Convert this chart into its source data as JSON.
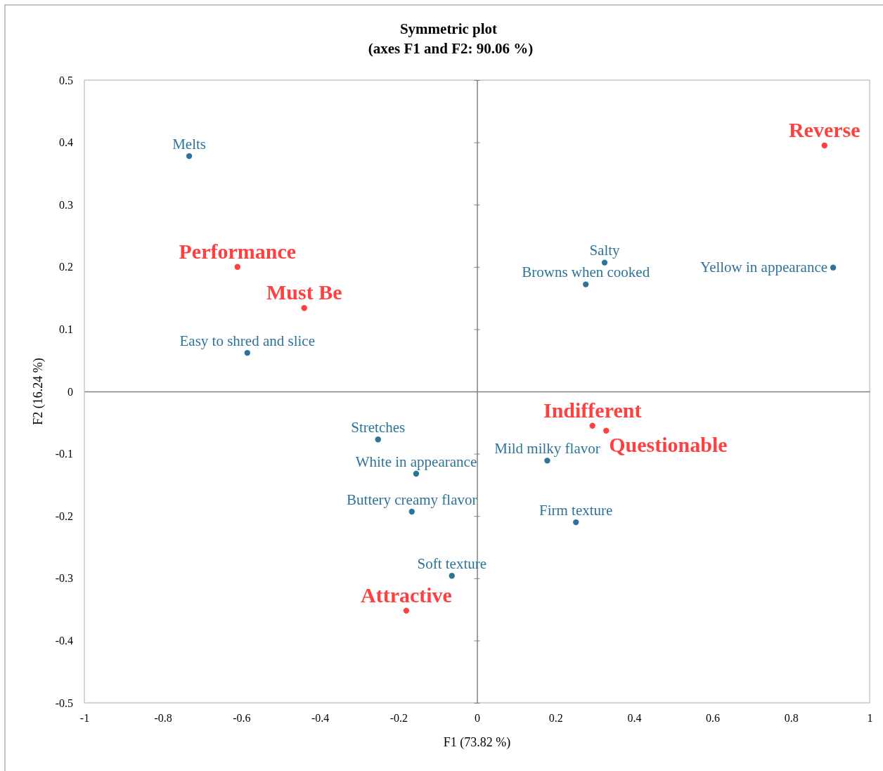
{
  "chart_data": {
    "type": "scatter",
    "title": "Symmetric plot",
    "subtitle": "(axes F1 and F2: 90.06 %)",
    "xlabel": "F1 (73.82 %)",
    "ylabel": "F2 (16.24 %)",
    "xlim": [
      -1,
      1
    ],
    "xticks": [
      -1,
      -0.8,
      -0.6,
      -0.4,
      -0.2,
      0,
      0.2,
      0.4,
      0.6,
      0.8,
      1
    ],
    "ylim": [
      -0.5,
      0.5
    ],
    "yticks": [
      -0.5,
      -0.4,
      -0.3,
      -0.2,
      -0.1,
      0,
      0.1,
      0.2,
      0.3,
      0.4,
      0.5
    ],
    "marker": "circle",
    "series": [
      {
        "color": "#2e7499",
        "x": [
          -0.733,
          -0.585,
          0.325,
          0.277,
          0.907,
          -0.252,
          -0.155,
          -0.166,
          -0.064,
          0.179,
          0.252
        ],
        "values": [
          0.378,
          0.062,
          0.207,
          0.172,
          0.199,
          -0.077,
          -0.132,
          -0.193,
          -0.296,
          -0.111,
          -0.21
        ]
      },
      {
        "color": "#ff4040",
        "x": [
          0.885,
          -0.61,
          -0.44,
          0.294,
          0.329,
          -0.18
        ],
        "values": [
          0.395,
          0.2,
          0.134,
          -0.055,
          -0.063,
          -0.352
        ]
      }
    ],
    "annotations": [
      {
        "text": "Melts",
        "x": -0.733,
        "y": 0.378
      },
      {
        "text": "Easy to shred and slice",
        "x": -0.585,
        "y": 0.062
      },
      {
        "text": "Salty",
        "x": 0.325,
        "y": 0.207
      },
      {
        "text": "Browns when cooked",
        "x": 0.277,
        "y": 0.172
      },
      {
        "text": "Yellow in appearance",
        "x": 0.907,
        "y": 0.199
      },
      {
        "text": "Stretches",
        "x": -0.252,
        "y": -0.077
      },
      {
        "text": "White in appearance",
        "x": -0.155,
        "y": -0.132
      },
      {
        "text": "Buttery creamy flavor",
        "x": -0.166,
        "y": -0.193
      },
      {
        "text": "Soft texture",
        "x": -0.064,
        "y": -0.296
      },
      {
        "text": "Mild milky flavor",
        "x": 0.179,
        "y": -0.111
      },
      {
        "text": "Firm texture",
        "x": 0.252,
        "y": -0.21
      },
      {
        "text": "Reverse",
        "x": 0.885,
        "y": 0.395
      },
      {
        "text": "Performance",
        "x": -0.61,
        "y": 0.2
      },
      {
        "text": "Must Be",
        "x": -0.44,
        "y": 0.134
      },
      {
        "text": "Indifferent",
        "x": 0.294,
        "y": -0.055
      },
      {
        "text": "Questionable",
        "x": 0.329,
        "y": -0.063
      },
      {
        "text": "Attractive",
        "x": -0.18,
        "y": -0.352
      }
    ]
  }
}
